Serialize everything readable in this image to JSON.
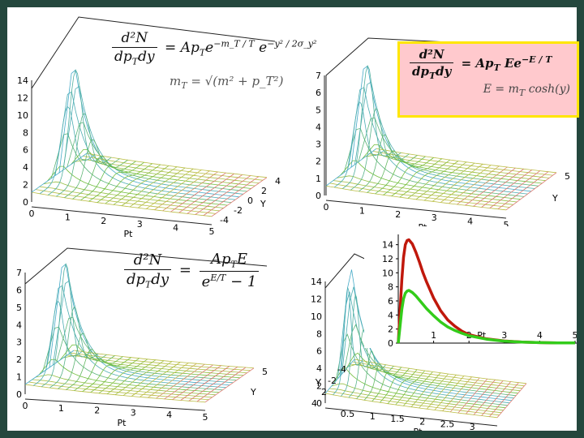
{
  "panels": [
    {
      "id": "p1",
      "zmax": 14,
      "zticks": [
        "0",
        "2",
        "4",
        "6",
        "8",
        "10",
        "12",
        "14"
      ],
      "xticks": [
        "0",
        "1",
        "2",
        "3",
        "4",
        "5"
      ],
      "xlabel": "Pt",
      "yticks": [
        "-4",
        "-2",
        "0",
        "2",
        "4"
      ],
      "ylabel": "Y"
    },
    {
      "id": "p2",
      "zmax": 7,
      "zticks": [
        "0",
        "1",
        "2",
        "3",
        "4",
        "5",
        "6",
        "7"
      ],
      "xticks": [
        "0",
        "1",
        "2",
        "3",
        "4",
        "5"
      ],
      "xlabel": "Pt",
      "yticks": [
        "5"
      ],
      "ylabel": "Y"
    },
    {
      "id": "p3",
      "zmax": 7,
      "zticks": [
        "0",
        "1",
        "2",
        "3",
        "4",
        "5",
        "6",
        "7"
      ],
      "xticks": [
        "0",
        "1",
        "2",
        "3",
        "4",
        "5"
      ],
      "xlabel": "Pt",
      "yticks": [
        "5"
      ],
      "ylabel": "Y"
    },
    {
      "id": "p4",
      "zmax": 14,
      "zticks": [
        "0",
        "2",
        "4",
        "6",
        "8",
        "10",
        "12",
        "14"
      ],
      "xticks": [
        "0.5",
        "1",
        "1.5",
        "2",
        "2.5",
        "3"
      ],
      "xlabel": "Pt",
      "yticks": [
        "-4",
        "-2",
        "2",
        "4"
      ],
      "ylabel": "Y"
    }
  ],
  "formulas": {
    "f1": {
      "lhs_num": "d²N",
      "lhs_den": "dp",
      "lhs_den_sub": "T",
      "lhs_den_tail": "dy",
      "rhs": "= Ap",
      "rhs_sub": "T",
      "rhs_tail": "e",
      "exp1": "−m_T / T",
      "exp2": "e",
      "exp3": "−y² / 2σ_y²",
      "line2": "m",
      "line2_sub": "T",
      "line2_tail": "= √(m² + p_T²)"
    },
    "f2": {
      "lhs_num": "d²N",
      "lhs_den": "dp",
      "lhs_den_sub": "T",
      "lhs_den_tail": "dy",
      "rhs": "= Ap",
      "rhs_sub": "T",
      "rhs_tail": "Ee",
      "exp1": "−E / T",
      "line2": "E = m",
      "line2_sub": "T",
      "line2_tail": "cosh(y)"
    },
    "f3": {
      "lhs_num": "d²N",
      "lhs_den": "dp",
      "lhs_den_sub": "T",
      "lhs_den_tail": "dy",
      "rhs_num": "Ap",
      "rhs_num_sub": "T",
      "rhs_num_tail": "E",
      "rhs_den": "e",
      "rhs_den_exp": "E/T",
      "rhs_den_tail": "− 1"
    }
  },
  "chart_data": [
    {
      "type": "surface3d",
      "title": "",
      "xlabel": "Pt",
      "ylabel": "Y",
      "zlabel": "",
      "xlim": [
        0,
        5
      ],
      "ylim": [
        -4,
        4
      ],
      "zlim": [
        0,
        14
      ],
      "peak": {
        "pt": 0.4,
        "y": 0,
        "z": 14
      }
    },
    {
      "type": "surface3d",
      "title": "",
      "xlabel": "Pt",
      "ylabel": "Y",
      "zlabel": "",
      "xlim": [
        0,
        5
      ],
      "ylim": [
        -5,
        5
      ],
      "zlim": [
        0,
        7
      ],
      "peak": {
        "pt": 0.4,
        "y": 0,
        "z": 7
      }
    },
    {
      "type": "surface3d",
      "title": "",
      "xlabel": "Pt",
      "ylabel": "Y",
      "zlabel": "",
      "xlim": [
        0,
        5
      ],
      "ylim": [
        -5,
        5
      ],
      "zlim": [
        0,
        7
      ],
      "peak": {
        "pt": 0.4,
        "y": 0,
        "z": 7
      }
    },
    {
      "type": "surface3d",
      "title": "",
      "xlabel": "Pt",
      "ylabel": "Y",
      "zlabel": "",
      "xlim": [
        0,
        3
      ],
      "ylim": [
        -4,
        4
      ],
      "zlim": [
        0,
        14
      ],
      "peak": {
        "pt": 0.3,
        "y": 0,
        "z": 14
      }
    },
    {
      "type": "line",
      "title": "",
      "xlabel": "Pt",
      "ylabel": "",
      "xlim": [
        0,
        5
      ],
      "ylim": [
        0,
        15
      ],
      "xticks": [
        "0",
        "1",
        "2",
        "3",
        "4",
        "5"
      ],
      "yticks": [
        "0",
        "2",
        "4",
        "6",
        "8",
        "10",
        "12",
        "14"
      ],
      "xlabel_ticks": "Pt",
      "series": [
        {
          "name": "red",
          "color": "#c0180c",
          "x": [
            0.0,
            0.05,
            0.1,
            0.15,
            0.2,
            0.25,
            0.3,
            0.4,
            0.5,
            0.6,
            0.7,
            0.8,
            1.0,
            1.2,
            1.4,
            1.6,
            1.8,
            2.0,
            2.5,
            3.0,
            3.5,
            4.0,
            4.5,
            5.0
          ],
          "y": [
            0.0,
            4.5,
            9.0,
            12.2,
            14.0,
            14.6,
            14.7,
            14.1,
            12.9,
            11.5,
            10.0,
            8.7,
            6.4,
            4.6,
            3.3,
            2.4,
            1.7,
            1.2,
            0.6,
            0.3,
            0.15,
            0.07,
            0.04,
            0.02
          ]
        },
        {
          "name": "green",
          "color": "#33cc1a",
          "x": [
            0.0,
            0.05,
            0.1,
            0.15,
            0.2,
            0.25,
            0.3,
            0.4,
            0.5,
            0.6,
            0.7,
            0.8,
            1.0,
            1.2,
            1.4,
            1.6,
            1.8,
            2.0,
            2.5,
            3.0,
            3.5,
            4.0,
            4.5,
            5.0
          ],
          "y": [
            0.0,
            2.4,
            4.8,
            6.3,
            7.1,
            7.4,
            7.5,
            7.2,
            6.7,
            6.1,
            5.5,
            4.9,
            3.9,
            3.0,
            2.3,
            1.8,
            1.4,
            1.05,
            0.55,
            0.28,
            0.14,
            0.07,
            0.04,
            0.02
          ]
        }
      ]
    }
  ]
}
